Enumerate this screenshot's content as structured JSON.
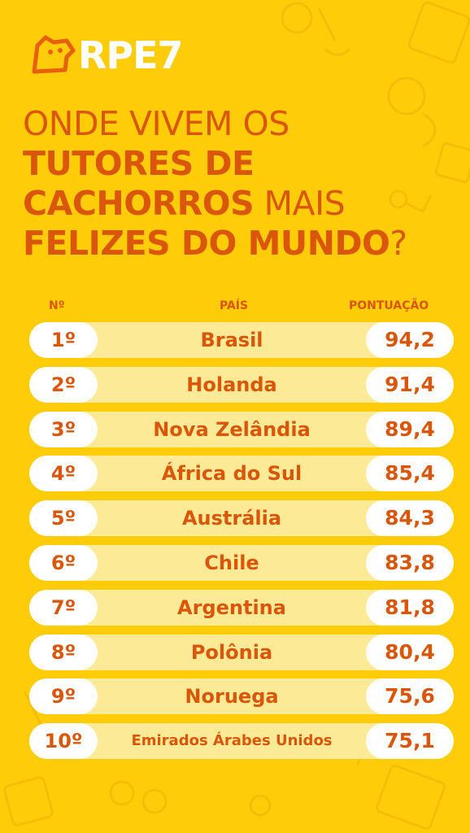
{
  "brand": {
    "name": "RPE7",
    "logo_icon": "dog-head-icon"
  },
  "title": {
    "line1": "ONDE VIVEM OS",
    "line2": "TUTORES DE",
    "line3_bold": "CACHORROS",
    "line3_light": " MAIS",
    "line4_bold": "FELIZES DO MUNDO",
    "line4_light": "?"
  },
  "table": {
    "headers": {
      "rank": "Nº",
      "country": "PAÍS",
      "score": "PONTUAÇÃO"
    },
    "rows": [
      {
        "rank": "1º",
        "country": "Brasil",
        "score": "94,2"
      },
      {
        "rank": "2º",
        "country": "Holanda",
        "score": "91,4"
      },
      {
        "rank": "3º",
        "country": "Nova Zelândia",
        "score": "89,4"
      },
      {
        "rank": "4º",
        "country": "África do Sul",
        "score": "85,4"
      },
      {
        "rank": "5º",
        "country": "Austrália",
        "score": "84,3"
      },
      {
        "rank": "6º",
        "country": "Chile",
        "score": "83,8"
      },
      {
        "rank": "7º",
        "country": "Argentina",
        "score": "81,8"
      },
      {
        "rank": "8º",
        "country": "Polônia",
        "score": "80,4"
      },
      {
        "rank": "9º",
        "country": "Noruega",
        "score": "75,6"
      },
      {
        "rank": "10º",
        "country": "Emirados Árabes Unidos",
        "score": "75,1"
      }
    ]
  },
  "colors": {
    "background": "#FFCC0A",
    "accent": "#D9560A",
    "row_fill": "#FCEA97",
    "pill": "#FFFFFF"
  }
}
